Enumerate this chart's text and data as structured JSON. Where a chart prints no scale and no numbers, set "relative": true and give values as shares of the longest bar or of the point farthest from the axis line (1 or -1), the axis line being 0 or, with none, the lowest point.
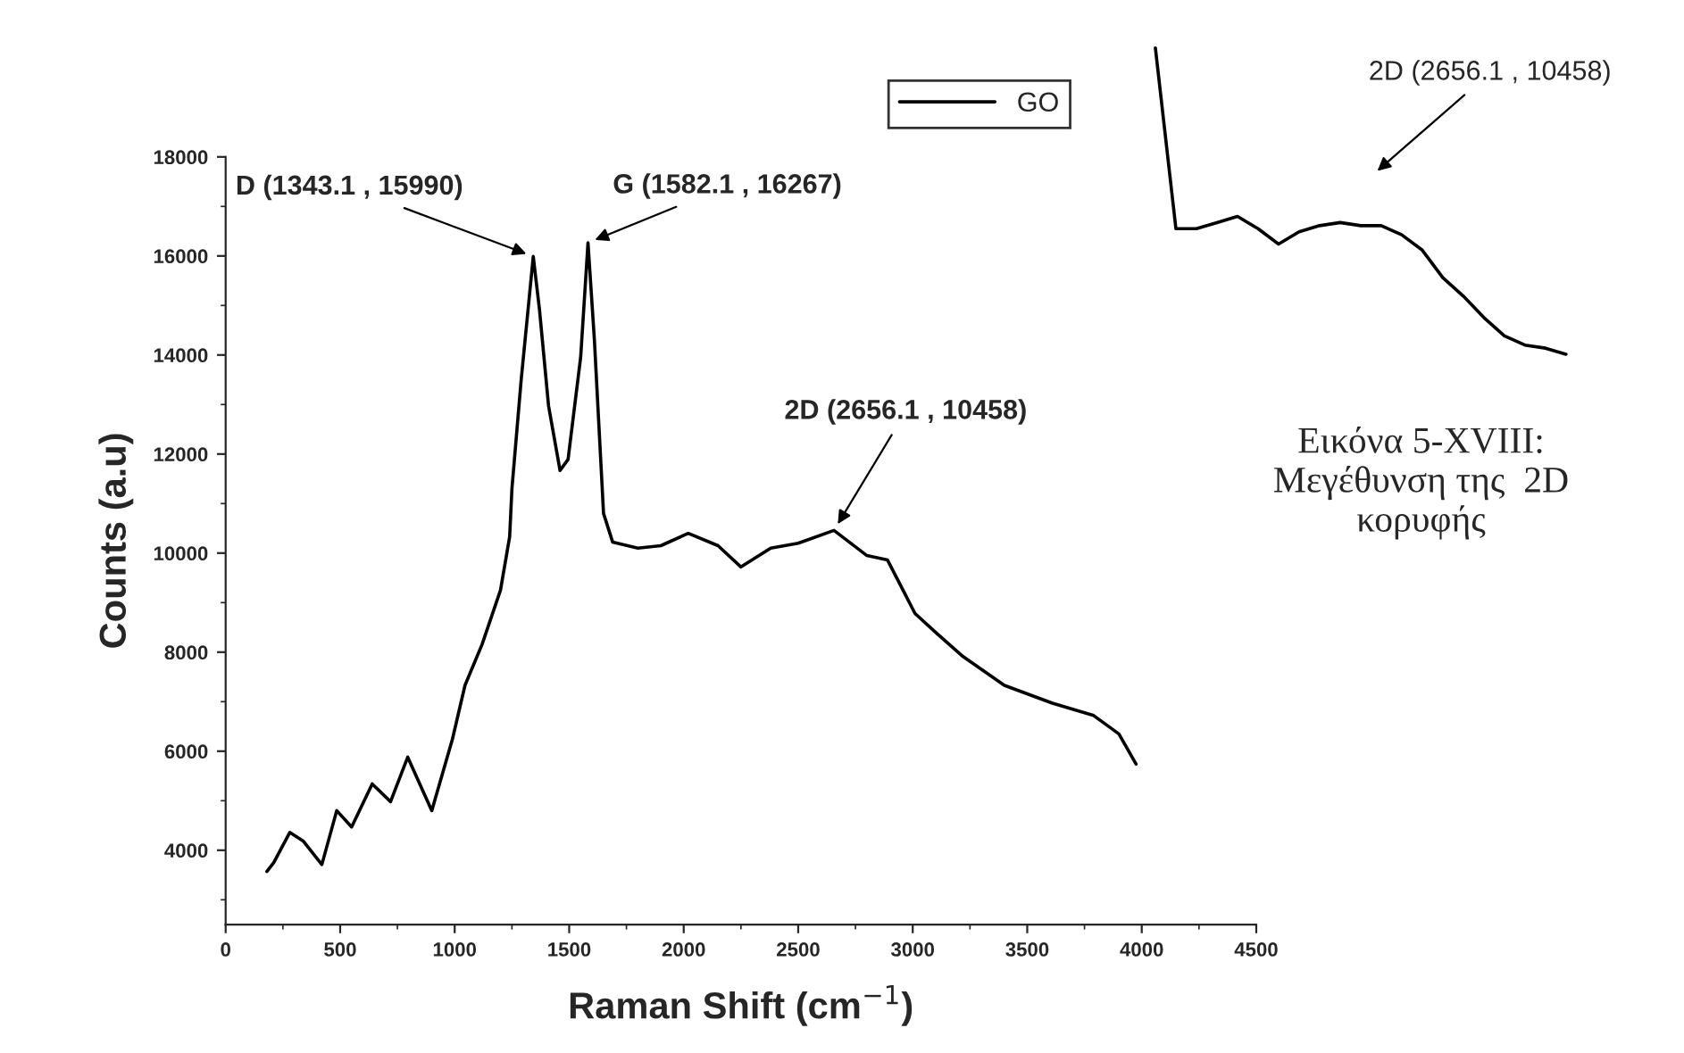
{
  "chart_data": [
    {
      "type": "line",
      "xlabel": "Raman Shift (cm$^{−1}$)",
      "ylabel": "Counts (a.u)",
      "xlim": [
        0,
        4500
      ],
      "ylim": [
        2500,
        18000
      ],
      "xticks": [
        0,
        500,
        1000,
        1500,
        2000,
        2500,
        3000,
        3500,
        4000,
        4500
      ],
      "yticks": [
        4000,
        6000,
        8000,
        10000,
        12000,
        14000,
        16000,
        18000
      ],
      "grid": false,
      "legend": "top right",
      "marker": "none",
      "line_style": "solid",
      "series": [
        {
          "name": "GO",
          "color": "#000000",
          "x": [
            180,
            210,
            280,
            340,
            420,
            485,
            550,
            640,
            720,
            795,
            900,
            990,
            1045,
            1120,
            1200,
            1240,
            1250,
            1290,
            1343.1,
            1370,
            1410,
            1460,
            1495,
            1550,
            1582.1,
            1610,
            1650,
            1690,
            1800,
            1900,
            2020,
            2150,
            2250,
            2380,
            2500,
            2656.1,
            2800,
            2890,
            3010,
            3100,
            3220,
            3400,
            3610,
            3790,
            3900,
            3975
          ],
          "values": [
            3570,
            3750,
            4360,
            4180,
            3710,
            4800,
            4470,
            5340,
            4980,
            5880,
            4800,
            6240,
            7330,
            8160,
            9250,
            10330,
            11300,
            13480,
            15990,
            14930,
            12970,
            11670,
            11890,
            13950,
            16267,
            14310,
            10800,
            10220,
            10100,
            10150,
            10400,
            10150,
            9720,
            10100,
            10200,
            10458,
            9950,
            9860,
            8780,
            8400,
            7910,
            7330,
            6970,
            6720,
            6350,
            5740
          ]
        }
      ],
      "annotations": [
        {
          "text": "D (1343.1 , 15990)",
          "x": 1343.1,
          "y": 15990
        },
        {
          "text": "G (1582.1 , 16267)",
          "x": 1582.1,
          "y": 16267
        },
        {
          "text": "2D (2656.1 , 10458)",
          "x": 2656.1,
          "y": 10458
        }
      ]
    },
    {
      "type": "line",
      "relative": true,
      "categories": [
        null,
        null,
        null,
        null,
        null,
        null,
        null,
        null,
        null,
        null,
        null,
        null,
        null,
        null,
        null,
        null,
        null,
        null,
        null,
        null,
        null
      ],
      "series": [
        {
          "color": "#000000",
          "values": [
            1.0,
            0.41,
            0.41,
            0.43,
            0.45,
            0.41,
            0.36,
            0.4,
            0.42,
            0.43,
            0.42,
            0.42,
            0.39,
            0.34,
            0.25,
            0.19,
            0.12,
            0.06,
            0.03,
            0.02,
            0.0
          ]
        }
      ],
      "annotations": [
        "2D (2656.1 , 10458)",
        "Εικόνα 5-XVIII:\nΜεγέθυνση της  2D\nκορυφής"
      ]
    }
  ]
}
